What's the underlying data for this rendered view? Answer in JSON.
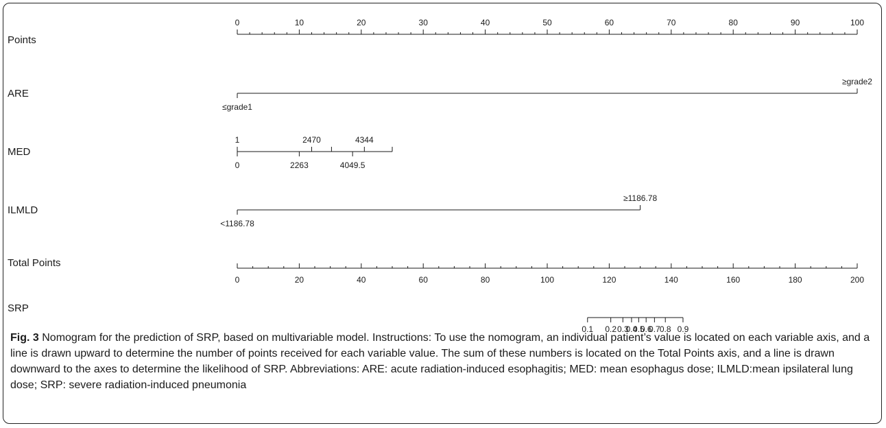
{
  "chart_data": {
    "type": "nomogram",
    "points_axis": {
      "label": "Points",
      "ticks": [
        0,
        10,
        20,
        30,
        40,
        50,
        60,
        70,
        80,
        90,
        100
      ]
    },
    "variables": [
      {
        "name": "ARE",
        "levels": [
          {
            "label": "≤grade1",
            "points": 0,
            "pos": "below"
          },
          {
            "label": "≥grade2",
            "points": 100,
            "pos": "above"
          }
        ]
      },
      {
        "name": "MED",
        "range": [
          0,
          25
        ],
        "levels": [
          {
            "label": "1",
            "points": 0,
            "pos": "above"
          },
          {
            "label": "0",
            "points": 0,
            "pos": "below"
          },
          {
            "label": "2470",
            "points": 12,
            "pos": "above"
          },
          {
            "label": "2263",
            "points": 10,
            "pos": "below"
          },
          {
            "label": "",
            "points": 15.2,
            "pos": "above"
          },
          {
            "label": "4344",
            "points": 20.5,
            "pos": "above"
          },
          {
            "label": "4049.5",
            "points": 18.6,
            "pos": "below"
          },
          {
            "label": "",
            "points": 25,
            "pos": "above"
          }
        ]
      },
      {
        "name": "ILMLD",
        "levels": [
          {
            "label": "<1186.78",
            "points": 0,
            "pos": "below"
          },
          {
            "label": "≥1186.78",
            "points": 65,
            "pos": "above"
          }
        ]
      }
    ],
    "total_points_axis": {
      "label": "Total Points",
      "range": [
        0,
        200
      ],
      "ticks": [
        0,
        20,
        40,
        60,
        80,
        100,
        120,
        140,
        160,
        180,
        200
      ]
    },
    "outcome_axis": {
      "label": "SRP",
      "ticks": [
        {
          "label": "0.1",
          "total": 113
        },
        {
          "label": "0.2",
          "total": 120.5
        },
        {
          "label": "0.3",
          "total": 124.4
        },
        {
          "label": "0.4",
          "total": 127.2
        },
        {
          "label": "0.5",
          "total": 129.5
        },
        {
          "label": "0.6",
          "total": 131.9
        },
        {
          "label": "0.7",
          "total": 134.6
        },
        {
          "label": "0.8",
          "total": 138.1
        },
        {
          "label": "0.9",
          "total": 143.8
        }
      ]
    }
  },
  "caption": {
    "fig_label": "Fig. 3",
    "text": "Nomogram for the prediction of SRP, based on multivariable model. Instructions: To use the nomogram, an individual patient’s value is located on each variable axis, and a line is drawn upward to determine the number of points received for each variable value. The sum of these numbers is located on the Total Points axis, and a line is drawn downward to the axes to determine the likelihood of SRP. Abbreviations: ARE: acute radiation-induced esophagitis; MED: mean esophagus dose; ILMLD:mean ipsilateral lung dose; SRP: severe radiation-induced pneumonia"
  }
}
